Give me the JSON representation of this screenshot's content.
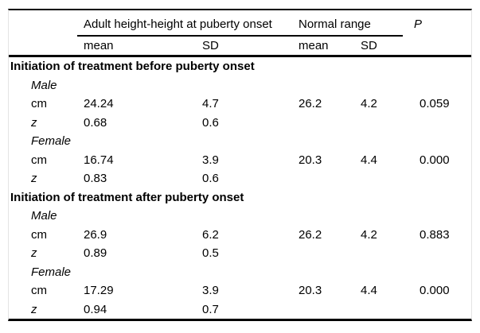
{
  "table": {
    "header": {
      "group1": "Adult height-height at puberty onset",
      "group2": "Normal range",
      "p_label": "P",
      "sub_mean1": "mean",
      "sub_sd1": "SD",
      "sub_mean2": "mean",
      "sub_sd2": "SD"
    },
    "sections": [
      {
        "title": "Initiation of treatment before puberty onset",
        "rows": [
          {
            "type": "group",
            "label": "Male"
          },
          {
            "type": "data",
            "label": "cm",
            "values": [
              "24.24",
              "4.7",
              "26.2",
              "4.2",
              "0.059"
            ]
          },
          {
            "type": "data",
            "label": "z",
            "values": [
              "0.68",
              "0.6",
              "",
              "",
              ""
            ]
          },
          {
            "type": "group",
            "label": "Female"
          },
          {
            "type": "data",
            "label": "cm",
            "values": [
              "16.74",
              "3.9",
              "20.3",
              "4.4",
              "0.000"
            ]
          },
          {
            "type": "data",
            "label": "z",
            "values": [
              "0.83",
              "0.6",
              "",
              "",
              ""
            ]
          }
        ]
      },
      {
        "title": "Initiation of treatment after puberty onset",
        "rows": [
          {
            "type": "group",
            "label": "Male"
          },
          {
            "type": "data",
            "label": "cm",
            "values": [
              "26.9",
              "6.2",
              "26.2",
              "4.2",
              "0.883"
            ]
          },
          {
            "type": "data",
            "label": "z",
            "values": [
              "0.89",
              "0.5",
              "",
              "",
              ""
            ]
          },
          {
            "type": "group",
            "label": "Female"
          },
          {
            "type": "data",
            "label": "cm",
            "values": [
              "17.29",
              "3.9",
              "20.3",
              "4.4",
              "0.000"
            ]
          },
          {
            "type": "data",
            "label": "z",
            "values": [
              "0.94",
              "0.7",
              "",
              "",
              ""
            ]
          }
        ]
      }
    ]
  }
}
